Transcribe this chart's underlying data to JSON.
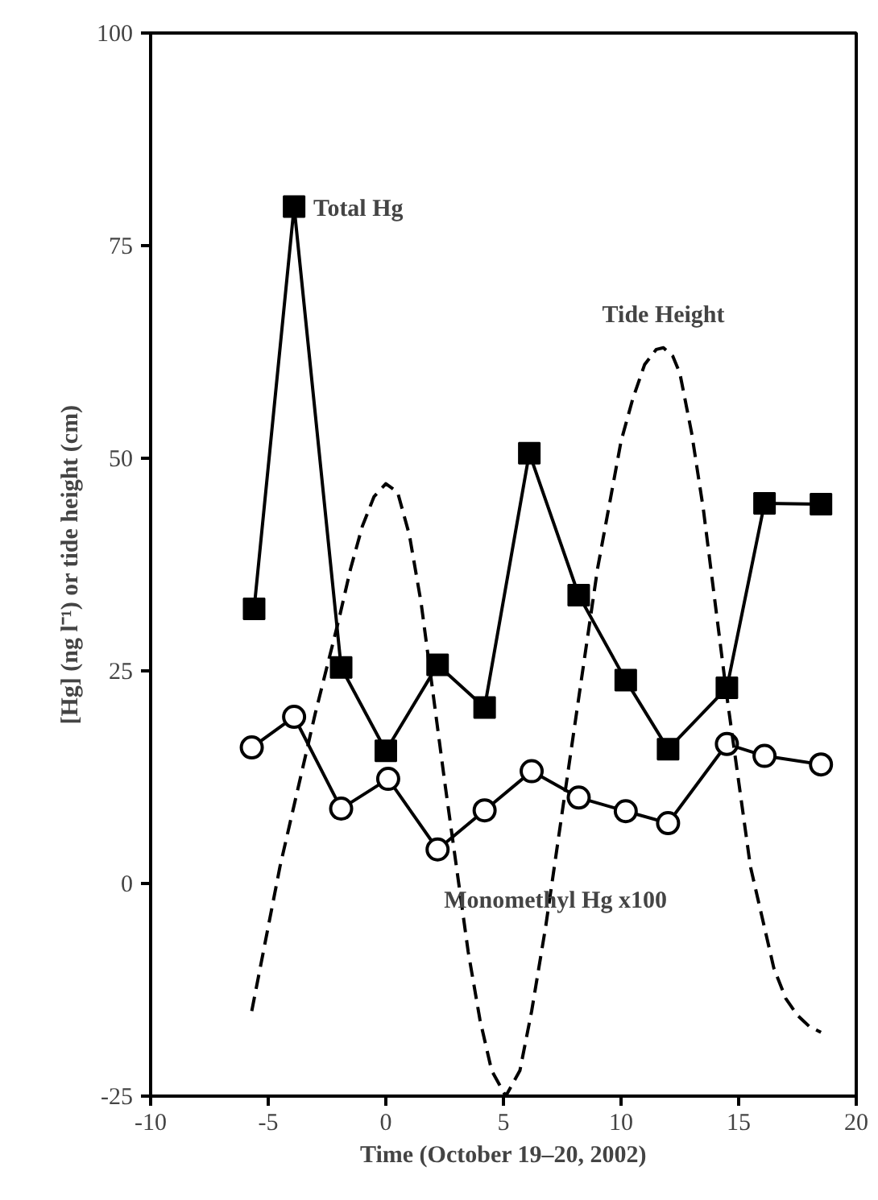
{
  "chart_data": {
    "type": "line",
    "xlabel": "Time (October 19–20, 2002)",
    "ylabel": "[Hg] (ng l⁻¹) or tide height (cm)",
    "xlim": [
      -10,
      20
    ],
    "ylim": [
      -25,
      100
    ],
    "xticks": [
      -10,
      -5,
      0,
      5,
      10,
      15,
      20
    ],
    "yticks": [
      -25,
      0,
      25,
      50,
      75,
      100
    ],
    "grid": false,
    "series": [
      {
        "color": "#000000",
        "marker": "square",
        "line_style": "solid",
        "x": [
          -5.6,
          -3.9,
          -1.9,
          0,
          2.2,
          4.2,
          6.1,
          8.2,
          10.2,
          12,
          14.5,
          16.1,
          18.5
        ],
        "values": [
          32.3,
          79.6,
          25.4,
          15.6,
          25.7,
          20.7,
          50.6,
          33.9,
          23.9,
          15.8,
          23,
          44.7,
          44.6
        ]
      },
      {
        "color": "#000000",
        "marker": "circle",
        "line_style": "solid",
        "x": [
          -5.7,
          -3.9,
          -1.9,
          0.1,
          2.2,
          4.2,
          6.2,
          8.2,
          10.2,
          12,
          14.5,
          16.1,
          18.5
        ],
        "values": [
          16,
          19.6,
          8.8,
          12.3,
          4,
          8.6,
          13.2,
          10.1,
          8.5,
          7.1,
          16.4,
          15,
          14
        ]
      },
      {
        "color": "#000000",
        "marker": "none",
        "line_style": "dashed",
        "x": [
          -5.7,
          -4.5,
          -3,
          -2,
          -1.5,
          -1,
          -0.5,
          0,
          0.5,
          1,
          1.5,
          2.5,
          3.5,
          4,
          4.5,
          5.1,
          5.7,
          6.2,
          6.8,
          8,
          9,
          10,
          10.5,
          11,
          11.5,
          11.8,
          12.2,
          12.5,
          13,
          13.5,
          14.5,
          15.5,
          16,
          16.5,
          17,
          17.5,
          18,
          18.5
        ],
        "values": [
          -15,
          2,
          20,
          31,
          37,
          42,
          45.5,
          47,
          46,
          41,
          33,
          12,
          -8,
          -16,
          -22,
          -25,
          -22,
          -15,
          -5,
          18,
          37,
          52,
          57,
          61,
          62.8,
          63,
          62,
          60,
          53,
          44,
          22,
          2,
          -4,
          -10,
          -13.5,
          -15.5,
          -16.8,
          -17.5
        ]
      }
    ],
    "annotations": [
      {
        "text": "Total Hg",
        "x": -3.9,
        "y": 79.6
      },
      {
        "text": "Tide Height",
        "x": 11.8,
        "y": 63
      },
      {
        "text": "Monomethyl Hg x100",
        "x": 2.2,
        "y": 4
      }
    ]
  }
}
